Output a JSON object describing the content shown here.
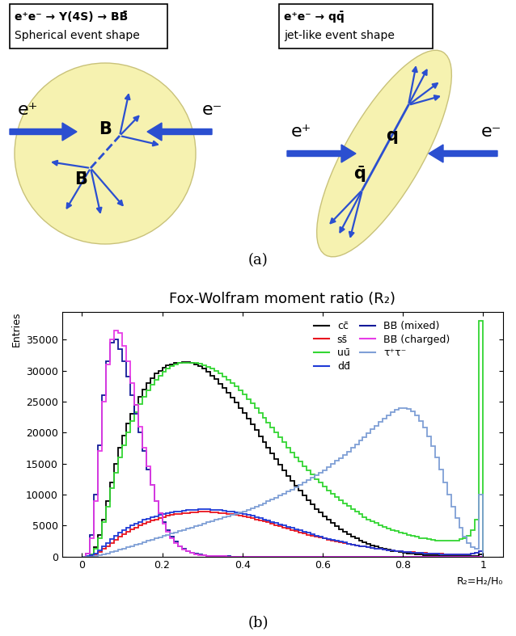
{
  "panel_labels": [
    "(a)",
    "(b)"
  ],
  "diagram": {
    "left": {
      "title": "e⁺e⁻ → Υ(4S) → BB̄",
      "subtitle": "Spherical event shape",
      "beam_left": "e⁺",
      "beam_right": "e⁻",
      "particle": "B",
      "antiparticle": "B̄"
    },
    "right": {
      "title": "e⁺e⁻ → qq̄",
      "subtitle": "jet-like event shape",
      "beam_left": "e⁺",
      "beam_right": "e⁻",
      "particle": "q",
      "antiparticle": "q̄"
    }
  },
  "chart_data": {
    "type": "histogram",
    "title": "Fox-Wolfram moment ratio (R₂)",
    "x_label": "R₂=H₂/H₀",
    "y_label": "Entries",
    "xlim": [
      -0.05,
      1.05
    ],
    "ylim": [
      0,
      39500
    ],
    "xticks": [
      0,
      0.2,
      0.4,
      0.6,
      0.8,
      1
    ],
    "yticks": [
      0,
      5000,
      10000,
      15000,
      20000,
      25000,
      30000,
      35000
    ],
    "legend": "upper right",
    "bins": [
      0,
      0.01,
      0.02,
      0.03,
      0.04,
      0.05,
      0.06,
      0.07,
      0.08,
      0.09,
      0.1,
      0.11,
      0.12,
      0.13,
      0.14,
      0.15,
      0.16,
      0.17,
      0.18,
      0.19,
      0.2,
      0.21,
      0.22,
      0.23,
      0.24,
      0.25,
      0.26,
      0.27,
      0.28,
      0.29,
      0.3,
      0.31,
      0.32,
      0.33,
      0.34,
      0.35,
      0.36,
      0.37,
      0.38,
      0.39,
      0.4,
      0.41,
      0.42,
      0.43,
      0.44,
      0.45,
      0.46,
      0.47,
      0.48,
      0.49,
      0.5,
      0.51,
      0.52,
      0.53,
      0.54,
      0.55,
      0.56,
      0.57,
      0.58,
      0.59,
      0.6,
      0.61,
      0.62,
      0.63,
      0.64,
      0.65,
      0.66,
      0.67,
      0.68,
      0.69,
      0.7,
      0.71,
      0.72,
      0.73,
      0.74,
      0.75,
      0.76,
      0.77,
      0.78,
      0.79,
      0.8,
      0.81,
      0.82,
      0.83,
      0.84,
      0.85,
      0.86,
      0.87,
      0.88,
      0.89,
      0.9,
      0.91,
      0.92,
      0.93,
      0.94,
      0.95,
      0.96,
      0.97,
      0.98,
      0.99,
      1
    ],
    "series": [
      {
        "name": "cc̄",
        "color": "#000000",
        "values": [
          0,
          50,
          400,
          1500,
          3500,
          6000,
          9000,
          12000,
          15000,
          17500,
          19500,
          21500,
          23000,
          24500,
          25800,
          27000,
          28000,
          28800,
          29500,
          30000,
          30500,
          30800,
          31000,
          31200,
          31300,
          31400,
          31400,
          31300,
          31000,
          30700,
          30300,
          29800,
          29200,
          28600,
          27900,
          27200,
          26400,
          25600,
          24800,
          24000,
          23100,
          22200,
          21300,
          20400,
          19400,
          18500,
          17500,
          16600,
          15700,
          14800,
          13900,
          13000,
          12200,
          11400,
          10600,
          9800,
          9100,
          8400,
          7700,
          7100,
          6500,
          5900,
          5400,
          4900,
          4400,
          4000,
          3600,
          3200,
          2900,
          2600,
          2300,
          2050,
          1800,
          1600,
          1400,
          1220,
          1060,
          920,
          800,
          690,
          590,
          500,
          430,
          370,
          310,
          260,
          220,
          190,
          160,
          130,
          110,
          90,
          75,
          60,
          50,
          40,
          30,
          25,
          20,
          300
        ]
      },
      {
        "name": "ss̄",
        "color": "#e8141e",
        "values": [
          0,
          10,
          100,
          350,
          750,
          1200,
          1700,
          2200,
          2700,
          3200,
          3600,
          4000,
          4400,
          4700,
          5000,
          5300,
          5600,
          5800,
          6000,
          6200,
          6400,
          6550,
          6700,
          6800,
          6900,
          7000,
          7050,
          7100,
          7150,
          7200,
          7200,
          7200,
          7150,
          7100,
          7050,
          7000,
          6900,
          6800,
          6700,
          6600,
          6450,
          6300,
          6150,
          6000,
          5850,
          5700,
          5500,
          5300,
          5100,
          4900,
          4700,
          4500,
          4300,
          4100,
          3900,
          3700,
          3500,
          3350,
          3200,
          3050,
          2900,
          2750,
          2600,
          2450,
          2300,
          2150,
          2000,
          1900,
          1800,
          1700,
          1600,
          1500,
          1400,
          1300,
          1200,
          1100,
          1030,
          960,
          900,
          840,
          780,
          720,
          670,
          620,
          580,
          540,
          500,
          470,
          440,
          410,
          390,
          370,
          350,
          340,
          340,
          350,
          380,
          430,
          550,
          800
        ]
      },
      {
        "name": "uū",
        "color": "#33d633",
        "values": [
          0,
          30,
          300,
          1200,
          3000,
          5500,
          8000,
          11000,
          13500,
          16000,
          18000,
          20000,
          21800,
          23300,
          24600,
          25800,
          26800,
          27700,
          28500,
          29200,
          29800,
          30300,
          30700,
          31000,
          31200,
          31300,
          31300,
          31300,
          31200,
          31100,
          30900,
          30600,
          30300,
          29900,
          29500,
          29000,
          28500,
          28000,
          27400,
          26800,
          26100,
          25400,
          24700,
          24000,
          23200,
          22400,
          21600,
          20800,
          20000,
          19200,
          18400,
          17600,
          16800,
          16000,
          15300,
          14600,
          13900,
          13200,
          12500,
          11900,
          11300,
          10700,
          10100,
          9600,
          9100,
          8600,
          8100,
          7700,
          7200,
          6800,
          6400,
          6000,
          5700,
          5400,
          5100,
          4800,
          4500,
          4300,
          4100,
          3900,
          3700,
          3500,
          3300,
          3200,
          3000,
          2900,
          2800,
          2700,
          2600,
          2500,
          2500,
          2500,
          2500,
          2600,
          2800,
          3000,
          3400,
          4200,
          6000,
          38000
        ]
      },
      {
        "name": "dd̄",
        "color": "#1f3ad6",
        "values": [
          0,
          20,
          150,
          500,
          1000,
          1600,
          2200,
          2800,
          3300,
          3800,
          4200,
          4600,
          5000,
          5300,
          5600,
          5900,
          6100,
          6300,
          6500,
          6700,
          6900,
          7000,
          7100,
          7200,
          7300,
          7400,
          7500,
          7500,
          7550,
          7600,
          7600,
          7600,
          7550,
          7500,
          7450,
          7400,
          7300,
          7200,
          7100,
          7000,
          6850,
          6700,
          6550,
          6400,
          6200,
          6000,
          5800,
          5600,
          5400,
          5200,
          5000,
          4800,
          4600,
          4400,
          4200,
          4000,
          3800,
          3600,
          3400,
          3200,
          3000,
          2850,
          2700,
          2550,
          2400,
          2250,
          2100,
          1950,
          1800,
          1700,
          1600,
          1500,
          1400,
          1300,
          1200,
          1100,
          1020,
          950,
          880,
          820,
          760,
          700,
          650,
          600,
          560,
          520,
          480,
          450,
          420,
          390,
          370,
          350,
          340,
          330,
          330,
          340,
          370,
          420,
          550,
          900
        ]
      },
      {
        "name": "BB̄ (mixed)",
        "color": "#141a99",
        "values": [
          0,
          500,
          3500,
          10000,
          18000,
          26000,
          31500,
          34500,
          35000,
          33500,
          31500,
          29000,
          26000,
          23000,
          20000,
          17000,
          14000,
          11500,
          9000,
          7000,
          5500,
          4200,
          3200,
          2400,
          1700,
          1250,
          900,
          620,
          430,
          300,
          200,
          140,
          95,
          65,
          45,
          30,
          20,
          13,
          9,
          6,
          4,
          3,
          2,
          1,
          1,
          0,
          0,
          0,
          0,
          0,
          0,
          0,
          0,
          0,
          0,
          0,
          0,
          0,
          0,
          0,
          0,
          0,
          0,
          0,
          0,
          0,
          0,
          0,
          0,
          0,
          0,
          0,
          0,
          0,
          0,
          0,
          0,
          0,
          0,
          0,
          0,
          0,
          0,
          0,
          0,
          0,
          0,
          0,
          0,
          0,
          0,
          0,
          0,
          0,
          0,
          0,
          0,
          0,
          0,
          0
        ]
      },
      {
        "name": "BB̄ (charged)",
        "color": "#e63ce6",
        "values": [
          0,
          500,
          3000,
          9000,
          17000,
          25000,
          31000,
          35000,
          36500,
          36000,
          34000,
          31500,
          28000,
          24500,
          21000,
          17500,
          14500,
          11500,
          9000,
          7000,
          5300,
          4000,
          3000,
          2200,
          1600,
          1150,
          800,
          560,
          380,
          260,
          180,
          120,
          80,
          55,
          35,
          25,
          15,
          10,
          6,
          4,
          3,
          2,
          1,
          1,
          0,
          0,
          0,
          0,
          0,
          0,
          0,
          0,
          0,
          0,
          0,
          0,
          0,
          0,
          0,
          0,
          0,
          0,
          0,
          0,
          0,
          0,
          0,
          0,
          0,
          0,
          0,
          0,
          0,
          0,
          0,
          0,
          0,
          0,
          0,
          0,
          0,
          0,
          0,
          0,
          0,
          0,
          0,
          0,
          0,
          0,
          0,
          0,
          0,
          0,
          0,
          0,
          0,
          0,
          0,
          0
        ]
      },
      {
        "name": "τ⁺τ⁻",
        "color": "#7f9fd6",
        "values": [
          0,
          0,
          10,
          50,
          150,
          300,
          500,
          700,
          900,
          1100,
          1300,
          1500,
          1700,
          1900,
          2100,
          2300,
          2500,
          2700,
          2900,
          3100,
          3300,
          3500,
          3700,
          3900,
          4100,
          4300,
          4500,
          4700,
          4900,
          5100,
          5300,
          5500,
          5700,
          5900,
          6100,
          6300,
          6500,
          6700,
          6900,
          7100,
          7300,
          7550,
          7800,
          8050,
          8300,
          8600,
          8900,
          9200,
          9500,
          9800,
          10100,
          10450,
          10800,
          11150,
          11500,
          11900,
          12300,
          12700,
          13100,
          13500,
          13900,
          14400,
          14900,
          15400,
          15900,
          16400,
          16900,
          17500,
          18100,
          18700,
          19300,
          19900,
          20500,
          21100,
          21700,
          22300,
          22800,
          23300,
          23700,
          23900,
          24000,
          23800,
          23400,
          22800,
          21900,
          20800,
          19400,
          17800,
          16000,
          14000,
          12000,
          10000,
          8000,
          6200,
          4600,
          3200,
          2200,
          1500,
          1200,
          10000
        ]
      }
    ]
  }
}
